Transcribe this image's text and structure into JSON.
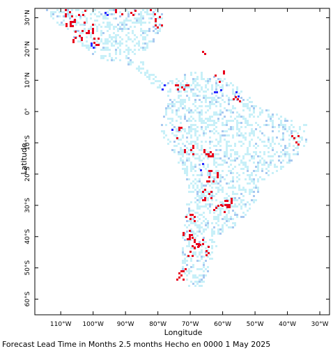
{
  "map": {
    "x_axis_title": "Longitude",
    "y_axis_title": "Latitude",
    "lon_ticks": [
      {
        "value": -110,
        "label": "110°W"
      },
      {
        "value": -100,
        "label": "100°W"
      },
      {
        "value": -90,
        "label": "90°W"
      },
      {
        "value": -80,
        "label": "80°W"
      },
      {
        "value": -70,
        "label": "70°W"
      },
      {
        "value": -60,
        "label": "60°W"
      },
      {
        "value": -50,
        "label": "50°W"
      },
      {
        "value": -40,
        "label": "40°W"
      },
      {
        "value": -30,
        "label": "30°W"
      }
    ],
    "lat_ticks": [
      {
        "value": 30,
        "label": "30°N"
      },
      {
        "value": 20,
        "label": "20°N"
      },
      {
        "value": 10,
        "label": "10°N"
      },
      {
        "value": 0,
        "label": "0°"
      },
      {
        "value": -10,
        "label": "10°S"
      },
      {
        "value": -20,
        "label": "20°S"
      },
      {
        "value": -30,
        "label": "30°S"
      },
      {
        "value": -40,
        "label": "40°S"
      },
      {
        "value": -50,
        "label": "50°S"
      },
      {
        "value": -60,
        "label": "60°S"
      }
    ],
    "extent": {
      "lon": [
        -118,
        -27
      ],
      "lat": [
        -65,
        33
      ]
    },
    "colors": {
      "strong_wet": "#e8001c",
      "strong_dry": "#2a2aff",
      "light_blue": "#a8c8f0",
      "pale_cyan": "#c8f0f8",
      "frame": "#000000"
    }
  },
  "footer": {
    "text": "Forecast Lead Time in Months 2.5 months Hecho en 0000 1 May 2025"
  }
}
